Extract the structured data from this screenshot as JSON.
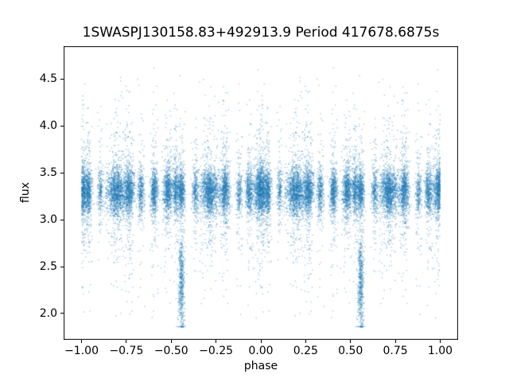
{
  "chart_data": {
    "type": "scatter",
    "title": "1SWASPJ130158.83+492913.9 Period 417678.6875s",
    "xlabel": "phase",
    "ylabel": "flux",
    "xlim": [
      -1.1,
      1.1
    ],
    "ylim": [
      1.72,
      4.85
    ],
    "xticks": [
      {
        "v": -1.0,
        "label": "−1.00"
      },
      {
        "v": -0.75,
        "label": "−0.75"
      },
      {
        "v": -0.5,
        "label": "−0.50"
      },
      {
        "v": -0.25,
        "label": "−0.25"
      },
      {
        "v": 0.0,
        "label": "0.00"
      },
      {
        "v": 0.25,
        "label": "0.25"
      },
      {
        "v": 0.5,
        "label": "0.50"
      },
      {
        "v": 0.75,
        "label": "0.75"
      },
      {
        "v": 1.0,
        "label": "1.00"
      }
    ],
    "yticks": [
      {
        "v": 2.0,
        "label": "2.0"
      },
      {
        "v": 2.5,
        "label": "2.5"
      },
      {
        "v": 3.0,
        "label": "3.0"
      },
      {
        "v": 3.5,
        "label": "3.5"
      },
      {
        "v": 4.0,
        "label": "4.0"
      },
      {
        "v": 4.5,
        "label": "4.5"
      }
    ],
    "grid": false,
    "legend": null,
    "marker_color": "#1f77b4",
    "marker_alpha": 0.4,
    "marker_size": 1.4,
    "seed": 1337,
    "flux_profile": {
      "core_mean": 3.3,
      "core_sd": 0.12,
      "tail_frac": 0.2,
      "tail_sd": 0.38,
      "outlier_frac": 0.025,
      "outlier_range": [
        1.95,
        4.62
      ],
      "clip": [
        1.82,
        4.68
      ]
    },
    "phase_clusters": [
      {
        "phase": 0.0,
        "width": 0.018,
        "n": 1500
      },
      {
        "phase": 0.04,
        "width": 0.01,
        "n": 500
      },
      {
        "phase": 0.105,
        "width": 0.008,
        "n": 250
      },
      {
        "phase": 0.195,
        "width": 0.026,
        "n": 1500
      },
      {
        "phase": 0.265,
        "width": 0.014,
        "n": 900
      },
      {
        "phase": 0.33,
        "width": 0.009,
        "n": 400
      },
      {
        "phase": 0.405,
        "width": 0.011,
        "n": 650
      },
      {
        "phase": 0.48,
        "width": 0.013,
        "n": 800
      },
      {
        "phase": 0.525,
        "width": 0.009,
        "n": 450
      },
      {
        "phase": 0.557,
        "width": 0.011,
        "n": 650
      },
      {
        "phase": 0.635,
        "width": 0.009,
        "n": 350
      },
      {
        "phase": 0.715,
        "width": 0.026,
        "n": 1500
      },
      {
        "phase": 0.8,
        "width": 0.014,
        "n": 850
      },
      {
        "phase": 0.88,
        "width": 0.009,
        "n": 300
      },
      {
        "phase": 0.935,
        "width": 0.011,
        "n": 550
      }
    ],
    "eclipses": [
      {
        "phase": 0.557,
        "width": 0.009,
        "n": 550,
        "flux_mean": 2.32,
        "flux_sd": 0.3,
        "flux_clip": [
          1.86,
          3.05
        ]
      }
    ],
    "note_mirroring": "each folded point is drawn at phase f and f-1 over [-1,1]"
  }
}
